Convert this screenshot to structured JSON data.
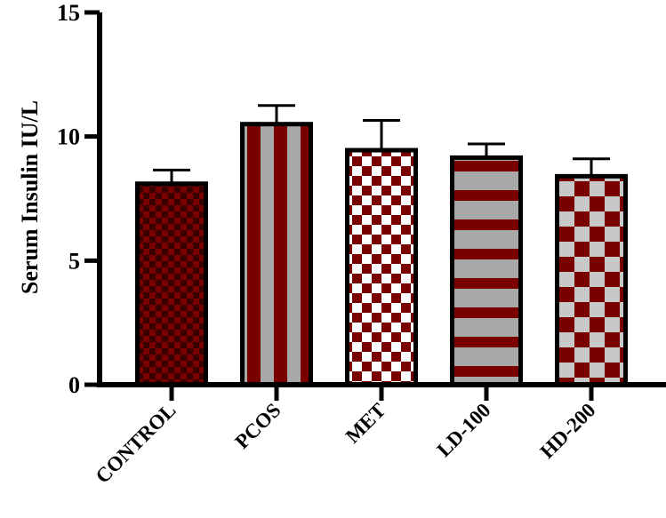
{
  "chart_data": {
    "type": "bar",
    "categories": [
      "CONTROL",
      "PCOS",
      "MET",
      "LD-100",
      "HD-200"
    ],
    "values": [
      8.1,
      10.5,
      9.45,
      9.15,
      8.4
    ],
    "errors": [
      0.55,
      0.75,
      1.2,
      0.55,
      0.7
    ],
    "title": "",
    "xlabel": "",
    "ylabel": "Serum Insulin IU/L",
    "ylim": [
      0,
      15
    ],
    "yticks": [
      0,
      5,
      10,
      15
    ],
    "ytick_labels": [
      "0",
      "5",
      "10",
      "15"
    ],
    "grid": false,
    "legend": "none",
    "patterns": [
      "small-checker",
      "vertical-stripes",
      "large-checker",
      "horizontal-stripes",
      "large-checker"
    ],
    "colors": {
      "maroon": "#7a0000",
      "dark_maroon": "#3a0000",
      "gray": "#a8a8a8",
      "light_gray": "#c8c8c8",
      "white": "#ffffff",
      "axis": "#000000"
    }
  }
}
